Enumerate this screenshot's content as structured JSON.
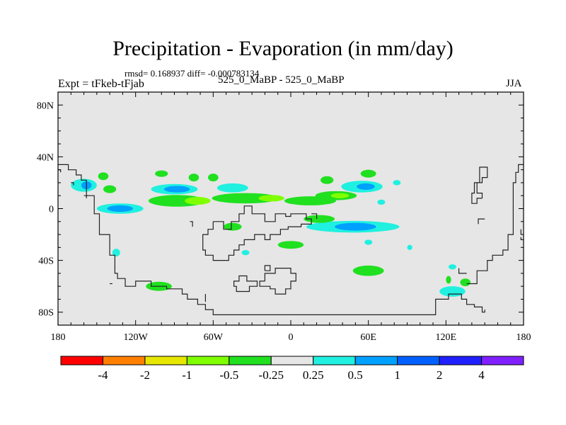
{
  "header": {
    "title": "Precipitation - Evaporation (in mm/day)",
    "subtitle": "rmsd= 0.168937 diff= -0.000783134",
    "left_label": "Expt = tFkeb-tFjab",
    "center_label": "525_0_MaBP - 525_0_MaBP",
    "right_label": "JJA"
  },
  "chart_data": {
    "type": "heatmap",
    "projection": "cylindrical-equidistant",
    "xlim": [
      -180,
      180
    ],
    "ylim": [
      -90,
      90
    ],
    "x_ticks": [
      {
        "value": -180,
        "label": "180"
      },
      {
        "value": -120,
        "label": "120W"
      },
      {
        "value": -60,
        "label": "60W"
      },
      {
        "value": 0,
        "label": "0"
      },
      {
        "value": 60,
        "label": "60E"
      },
      {
        "value": 120,
        "label": "120E"
      },
      {
        "value": 180,
        "label": "180"
      }
    ],
    "y_ticks": [
      {
        "value": 80,
        "label": "80N"
      },
      {
        "value": 40,
        "label": "40N"
      },
      {
        "value": 0,
        "label": "0"
      },
      {
        "value": -40,
        "label": "40S"
      },
      {
        "value": -80,
        "label": "80S"
      }
    ],
    "background_color": "#e6e6e6",
    "colorbar": {
      "levels": [
        "-4",
        "-2",
        "-1",
        "-0.5",
        "-0.25",
        "0.25",
        "0.5",
        "1",
        "2",
        "4"
      ],
      "colors": [
        "#ff0000",
        "#ff8000",
        "#e6e600",
        "#80ff00",
        "#20e020",
        "#e6e6e6",
        "#20f0e0",
        "#00a0ff",
        "#0060ff",
        "#2020ff",
        "#8020ff"
      ]
    },
    "patches": [
      {
        "lon": -88,
        "lat": 6,
        "rlon": 22,
        "rlat": 4.5,
        "color": "#20e020"
      },
      {
        "lon": -72,
        "lat": 6,
        "rlon": 10,
        "rlat": 3,
        "color": "#80ff00"
      },
      {
        "lon": -35,
        "lat": 8,
        "rlon": 26,
        "rlat": 4,
        "color": "#20e020"
      },
      {
        "lon": -15,
        "lat": 8,
        "rlon": 10,
        "rlat": 2.5,
        "color": "#80ff00"
      },
      {
        "lon": 15,
        "lat": 6,
        "rlon": 20,
        "rlat": 3.5,
        "color": "#20e020"
      },
      {
        "lon": 35,
        "lat": 10,
        "rlon": 16,
        "rlat": 3.5,
        "color": "#20e020"
      },
      {
        "lon": 38,
        "lat": 10,
        "rlon": 7,
        "rlat": 2,
        "color": "#80ff00"
      },
      {
        "lon": -90,
        "lat": 15,
        "rlon": 18,
        "rlat": 4,
        "color": "#20f0e0"
      },
      {
        "lon": -88,
        "lat": 15,
        "rlon": 10,
        "rlat": 2.5,
        "color": "#00a0ff"
      },
      {
        "lon": -45,
        "lat": 16,
        "rlon": 12,
        "rlat": 3.5,
        "color": "#20f0e0"
      },
      {
        "lon": -132,
        "lat": 0,
        "rlon": 18,
        "rlat": 4,
        "color": "#20f0e0"
      },
      {
        "lon": -132,
        "lat": 0,
        "rlon": 10,
        "rlat": 2.5,
        "color": "#00a0ff"
      },
      {
        "lon": -160,
        "lat": 18,
        "rlon": 10,
        "rlat": 5,
        "color": "#20f0e0"
      },
      {
        "lon": -158,
        "lat": 18,
        "rlon": 4,
        "rlat": 3,
        "color": "#00a0ff"
      },
      {
        "lon": -140,
        "lat": 15,
        "rlon": 5,
        "rlat": 3,
        "color": "#20e020"
      },
      {
        "lon": -145,
        "lat": 25,
        "rlon": 4,
        "rlat": 3,
        "color": "#20e020"
      },
      {
        "lon": -100,
        "lat": 27,
        "rlon": 5,
        "rlat": 2.5,
        "color": "#20e020"
      },
      {
        "lon": -75,
        "lat": 24,
        "rlon": 4,
        "rlat": 3,
        "color": "#20e020"
      },
      {
        "lon": -60,
        "lat": 24,
        "rlon": 4,
        "rlat": 3,
        "color": "#20e020"
      },
      {
        "lon": 28,
        "lat": 22,
        "rlon": 5,
        "rlat": 3,
        "color": "#20e020"
      },
      {
        "lon": 60,
        "lat": 27,
        "rlon": 6,
        "rlat": 3,
        "color": "#20e020"
      },
      {
        "lon": 55,
        "lat": 17,
        "rlon": 16,
        "rlat": 4.5,
        "color": "#20f0e0"
      },
      {
        "lon": 58,
        "lat": 17,
        "rlon": 7,
        "rlat": 2.5,
        "color": "#00a0ff"
      },
      {
        "lon": 48,
        "lat": -14,
        "rlon": 36,
        "rlat": 4.5,
        "color": "#20f0e0"
      },
      {
        "lon": 50,
        "lat": -14,
        "rlon": 16,
        "rlat": 3,
        "color": "#00a0ff"
      },
      {
        "lon": 22,
        "lat": -8,
        "rlon": 12,
        "rlat": 3,
        "color": "#20e020"
      },
      {
        "lon": -45,
        "lat": -14,
        "rlon": 7,
        "rlat": 3,
        "color": "#20e020"
      },
      {
        "lon": 0,
        "lat": -28,
        "rlon": 10,
        "rlat": 3,
        "color": "#20e020"
      },
      {
        "lon": 60,
        "lat": -48,
        "rlon": 12,
        "rlat": 4,
        "color": "#20e020"
      },
      {
        "lon": -102,
        "lat": -60,
        "rlon": 10,
        "rlat": 3.5,
        "color": "#20e020"
      },
      {
        "lon": 125,
        "lat": -64,
        "rlon": 10,
        "rlat": 4,
        "color": "#20f0e0"
      },
      {
        "lon": 135,
        "lat": -57,
        "rlon": 4,
        "rlat": 3,
        "color": "#20e020"
      },
      {
        "lon": -135,
        "lat": -34,
        "rlon": 3,
        "rlat": 3,
        "color": "#20f0e0"
      },
      {
        "lon": -35,
        "lat": -34,
        "rlon": 3,
        "rlat": 2,
        "color": "#20f0e0"
      },
      {
        "lon": 92,
        "lat": -30,
        "rlon": 2,
        "rlat": 2,
        "color": "#20f0e0"
      },
      {
        "lon": 125,
        "lat": -45,
        "rlon": 3,
        "rlat": 2,
        "color": "#20f0e0"
      },
      {
        "lon": 122,
        "lat": -55,
        "rlon": 2,
        "rlat": 3,
        "color": "#20e020"
      },
      {
        "lon": 82,
        "lat": 20,
        "rlon": 3,
        "rlat": 2,
        "color": "#20f0e0"
      },
      {
        "lon": 70,
        "lat": 5,
        "rlon": 3,
        "rlat": 2,
        "color": "#20f0e0"
      },
      {
        "lon": 60,
        "lat": -26,
        "rlon": 3,
        "rlat": 2,
        "color": "#20f0e0"
      }
    ],
    "coastlines": [
      [
        [
          -180,
          34
        ],
        [
          -172,
          34
        ],
        [
          -172,
          30
        ],
        [
          -166,
          30
        ],
        [
          -166,
          26
        ],
        [
          -162,
          26
        ],
        [
          -162,
          22
        ],
        [
          -158,
          22
        ],
        [
          -158,
          10
        ],
        [
          -152,
          10
        ],
        [
          -152,
          -4
        ],
        [
          -148,
          -4
        ],
        [
          -148,
          -20
        ],
        [
          -140,
          -20
        ],
        [
          -140,
          -36
        ],
        [
          -136,
          -36
        ],
        [
          -136,
          -50
        ],
        [
          -134,
          -50
        ],
        [
          -134,
          -54
        ],
        [
          -128,
          -54
        ],
        [
          -128,
          -60
        ],
        [
          -120,
          -60
        ],
        [
          -120,
          -56
        ],
        [
          -108,
          -56
        ],
        [
          -108,
          -60
        ],
        [
          -96,
          -60
        ],
        [
          -96,
          -62
        ],
        [
          -84,
          -62
        ],
        [
          -84,
          -66
        ],
        [
          -80,
          -66
        ],
        [
          -80,
          -70
        ],
        [
          -72,
          -70
        ],
        [
          -72,
          -74
        ],
        [
          -66,
          -74
        ],
        [
          -66,
          -78
        ],
        [
          -60,
          -78
        ],
        [
          -60,
          -82
        ],
        [
          112,
          -82
        ],
        [
          112,
          -70
        ],
        [
          122,
          -70
        ],
        [
          122,
          -66
        ],
        [
          132,
          -66
        ],
        [
          132,
          -70
        ],
        [
          136,
          -70
        ],
        [
          136,
          -74
        ],
        [
          142,
          -74
        ],
        [
          142,
          -76
        ],
        [
          148,
          -76
        ],
        [
          148,
          -80
        ],
        [
          150,
          -80
        ],
        [
          150,
          -78
        ]
      ],
      [
        [
          -180,
          30
        ],
        [
          -178,
          30
        ],
        [
          -178,
          28
        ]
      ],
      [
        [
          -66,
          -66
        ],
        [
          -66,
          -72
        ]
      ],
      [
        [
          -60,
          -10
        ],
        [
          -52,
          -10
        ],
        [
          -52,
          -16
        ],
        [
          -46,
          -16
        ],
        [
          -46,
          -10
        ],
        [
          -40,
          -10
        ],
        [
          -40,
          -4
        ],
        [
          -36,
          -4
        ],
        [
          -36,
          2
        ],
        [
          -30,
          2
        ],
        [
          -30,
          -4
        ],
        [
          -20,
          -4
        ],
        [
          -20,
          -10
        ],
        [
          -12,
          -10
        ],
        [
          -12,
          -4
        ],
        [
          -4,
          -4
        ],
        [
          -4,
          -6
        ],
        [
          0,
          -6
        ],
        [
          0,
          -4
        ],
        [
          12,
          -4
        ],
        [
          12,
          -8
        ],
        [
          16,
          -8
        ],
        [
          16,
          -12
        ],
        [
          8,
          -12
        ],
        [
          8,
          -14
        ],
        [
          -2,
          -14
        ],
        [
          -2,
          -16
        ],
        [
          -8,
          -16
        ],
        [
          -8,
          -20
        ],
        [
          -16,
          -20
        ],
        [
          -16,
          -24
        ],
        [
          -20,
          -24
        ],
        [
          -20,
          -20
        ],
        [
          -28,
          -20
        ],
        [
          -28,
          -24
        ],
        [
          -36,
          -24
        ],
        [
          -36,
          -28
        ],
        [
          -40,
          -28
        ],
        [
          -40,
          -32
        ],
        [
          -44,
          -32
        ],
        [
          -44,
          -36
        ],
        [
          -48,
          -36
        ],
        [
          -48,
          -40
        ],
        [
          -60,
          -40
        ],
        [
          -60,
          -36
        ],
        [
          -66,
          -36
        ],
        [
          -66,
          -32
        ],
        [
          -68,
          -32
        ],
        [
          -68,
          -20
        ],
        [
          -64,
          -20
        ],
        [
          -64,
          -16
        ],
        [
          -60,
          -16
        ],
        [
          -60,
          -10
        ]
      ],
      [
        [
          -78,
          -10
        ],
        [
          -76,
          -10
        ],
        [
          -76,
          -14
        ]
      ],
      [
        [
          -140,
          -58
        ],
        [
          -138,
          -58
        ]
      ],
      [
        [
          -20,
          -56
        ],
        [
          -20,
          -50
        ],
        [
          -12,
          -50
        ],
        [
          -12,
          -46
        ],
        [
          0,
          -46
        ],
        [
          0,
          -50
        ],
        [
          4,
          -50
        ],
        [
          4,
          -56
        ],
        [
          0,
          -56
        ],
        [
          0,
          -62
        ],
        [
          -4,
          -62
        ],
        [
          -4,
          -66
        ],
        [
          -12,
          -66
        ],
        [
          -12,
          -62
        ],
        [
          -16,
          -62
        ],
        [
          -16,
          -60
        ],
        [
          -24,
          -60
        ],
        [
          -24,
          -56
        ],
        [
          -20,
          -56
        ]
      ],
      [
        [
          -38,
          -52
        ],
        [
          -34,
          -52
        ],
        [
          -34,
          -56
        ],
        [
          -26,
          -56
        ],
        [
          -26,
          -60
        ],
        [
          -32,
          -60
        ],
        [
          -32,
          -64
        ],
        [
          -42,
          -64
        ],
        [
          -42,
          -60
        ],
        [
          -44,
          -60
        ],
        [
          -44,
          -56
        ],
        [
          -40,
          -56
        ],
        [
          -40,
          -52
        ],
        [
          -38,
          -52
        ]
      ],
      [
        [
          -20,
          -48
        ],
        [
          -16,
          -48
        ],
        [
          -16,
          -44
        ],
        [
          -20,
          -44
        ],
        [
          -20,
          -48
        ]
      ],
      [
        [
          16,
          -4
        ],
        [
          20,
          -4
        ],
        [
          20,
          -8
        ]
      ],
      [
        [
          145,
          -12
        ],
        [
          145,
          -8
        ],
        [
          150,
          -8
        ]
      ],
      [
        [
          148,
          8
        ],
        [
          148,
          12
        ],
        [
          144,
          12
        ],
        [
          144,
          20
        ],
        [
          148,
          20
        ],
        [
          148,
          24
        ],
        [
          152,
          24
        ],
        [
          152,
          32
        ],
        [
          146,
          32
        ],
        [
          146,
          20
        ],
        [
          142,
          20
        ],
        [
          142,
          12
        ],
        [
          140,
          12
        ],
        [
          140,
          4
        ],
        [
          144,
          4
        ],
        [
          144,
          8
        ],
        [
          148,
          8
        ]
      ],
      [
        [
          180,
          34
        ],
        [
          176,
          34
        ],
        [
          176,
          28
        ],
        [
          174,
          28
        ],
        [
          174,
          20
        ],
        [
          172,
          20
        ],
        [
          172,
          -20
        ],
        [
          168,
          -20
        ],
        [
          168,
          -32
        ],
        [
          164,
          -32
        ],
        [
          164,
          -36
        ],
        [
          156,
          -36
        ],
        [
          156,
          -40
        ],
        [
          152,
          -40
        ],
        [
          152,
          -48
        ],
        [
          144,
          -48
        ],
        [
          144,
          -58
        ],
        [
          136,
          -58
        ]
      ],
      [
        [
          180,
          -24
        ],
        [
          178,
          -24
        ],
        [
          178,
          -22
        ]
      ],
      [
        [
          178,
          -20
        ],
        [
          178,
          -16
        ]
      ],
      [
        [
          130,
          -46
        ],
        [
          130,
          -50
        ],
        [
          136,
          -50
        ]
      ],
      [
        [
          -170,
          20
        ],
        [
          -168,
          20
        ],
        [
          -168,
          18
        ]
      ],
      [
        [
          -160,
          10
        ],
        [
          -158,
          10
        ],
        [
          -158,
          8
        ]
      ]
    ]
  }
}
